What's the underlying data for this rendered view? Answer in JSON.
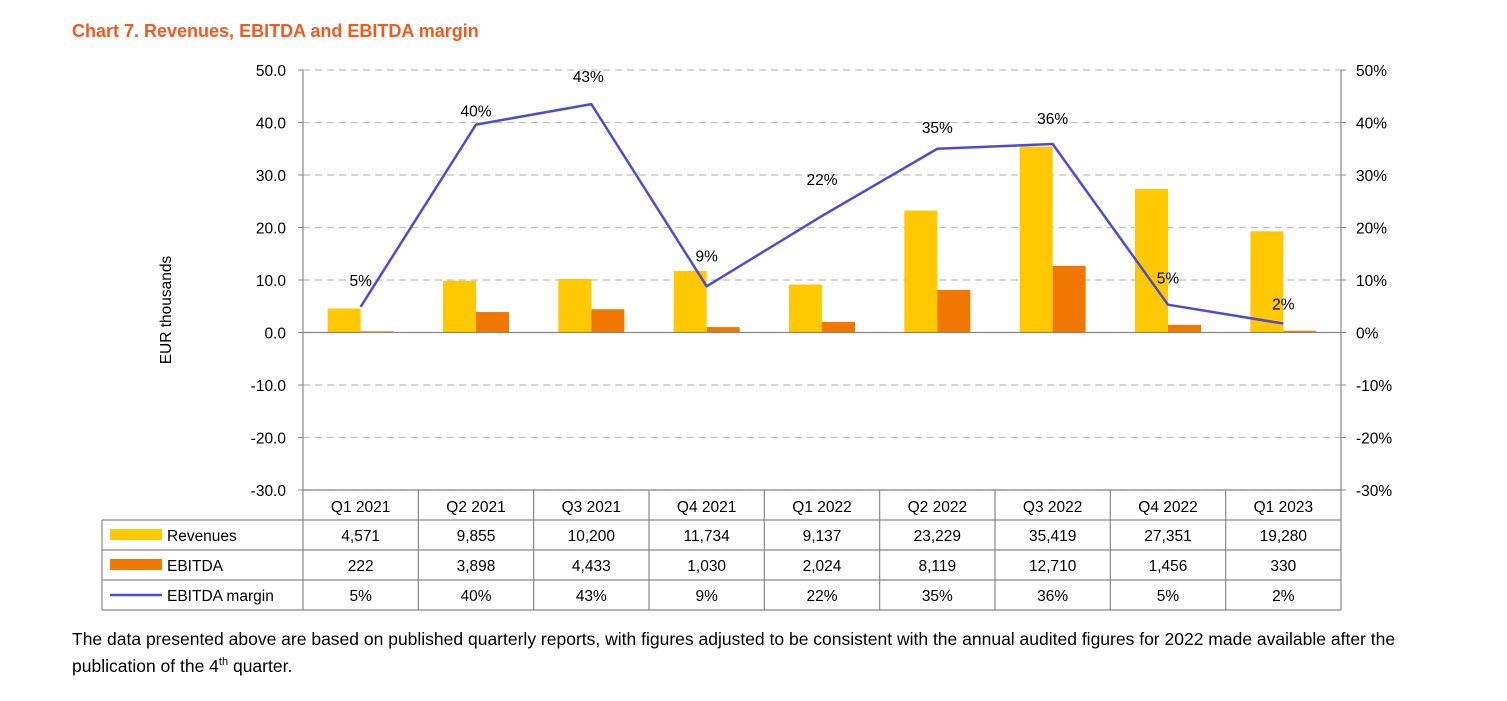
{
  "title": "Chart 7. Revenues, EBITDA and EBITDA margin",
  "footnote": {
    "text_before": "The data presented above are based on published quarterly reports, with figures adjusted to be consistent with the annual audited figures for 2022 made available after the publication of the 4",
    "superscript": "th",
    "text_after": " quarter."
  },
  "chart_data": {
    "type": "bar",
    "categories": [
      "Q1 2021",
      "Q2 2021",
      "Q3 2021",
      "Q4 2021",
      "Q1 2022",
      "Q2 2022",
      "Q3 2022",
      "Q4 2022",
      "Q1 2023"
    ],
    "ylabel": "EUR thousands",
    "ylim": [
      -30,
      50
    ],
    "y_ticks": [
      "50.0",
      "40.0",
      "30.0",
      "20.0",
      "10.0",
      "0.0",
      "-10.0",
      "-20.0",
      "-30.0"
    ],
    "y2lim": [
      -30,
      50
    ],
    "y2_ticks": [
      "50%",
      "40%",
      "30%",
      "20%",
      "10%",
      "0%",
      "-10%",
      "-20%",
      "-30%"
    ],
    "grid": true,
    "legend": "data-table",
    "series": [
      {
        "name": "Revenues",
        "type": "bar",
        "color": "#FFC800",
        "values": [
          4.571,
          9.855,
          10.2,
          11.734,
          9.137,
          23.229,
          35.419,
          27.351,
          19.28
        ],
        "table_labels": [
          "4,571",
          "9,855",
          "10,200",
          "11,734",
          "9,137",
          "23,229",
          "35,419",
          "27,351",
          "19,280"
        ]
      },
      {
        "name": "EBITDA",
        "type": "bar",
        "color": "#F07800",
        "values": [
          0.222,
          3.898,
          4.433,
          1.03,
          2.024,
          8.119,
          12.71,
          1.456,
          0.33
        ],
        "table_labels": [
          "222",
          "3,898",
          "4,433",
          "1,030",
          "2,024",
          "8,119",
          "12,710",
          "1,456",
          "330"
        ]
      },
      {
        "name": "EBITDA margin",
        "type": "line",
        "axis": "right",
        "color": "#4B4BD8",
        "values": [
          4.9,
          39.6,
          43.5,
          8.8,
          22.2,
          35.0,
          35.9,
          5.3,
          1.7
        ],
        "data_labels": [
          "5%",
          "40%",
          "43%",
          "9%",
          "22%",
          "35%",
          "36%",
          "5%",
          "2%"
        ],
        "table_labels": [
          "5%",
          "40%",
          "43%",
          "9%",
          "22%",
          "35%",
          "36%",
          "5%",
          "2%"
        ]
      }
    ]
  }
}
